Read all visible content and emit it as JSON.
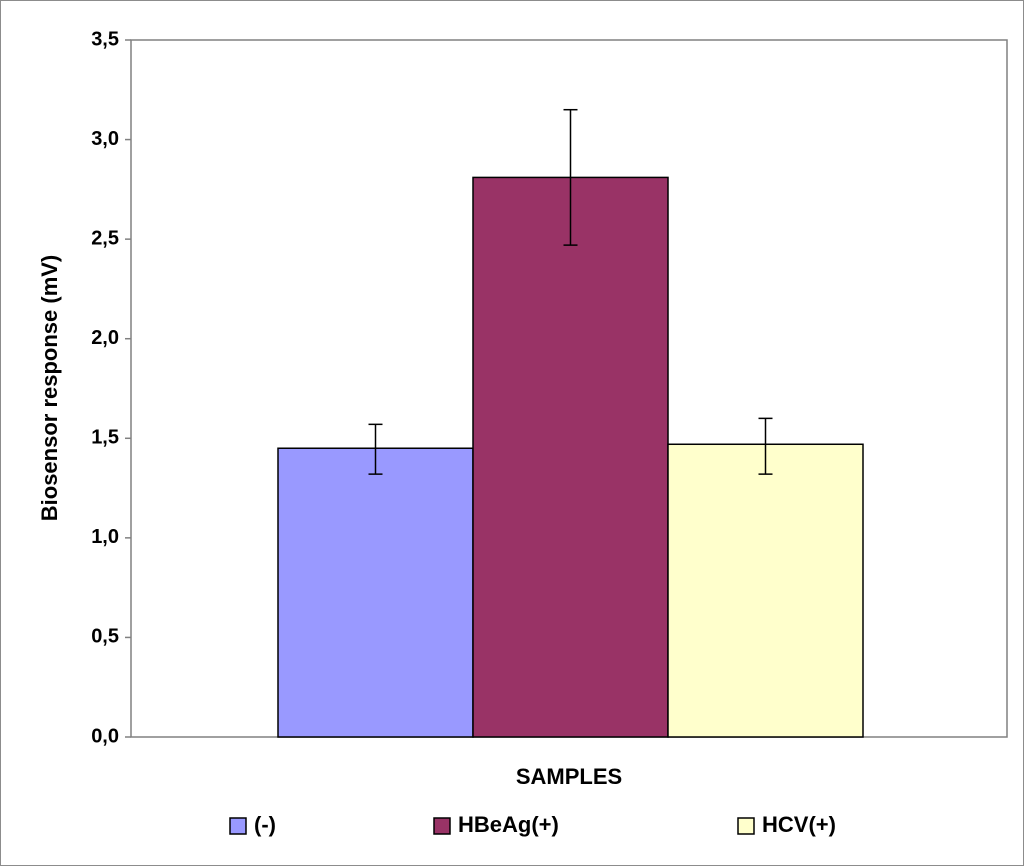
{
  "chart_data": {
    "type": "bar",
    "categories": [
      "(-)",
      "HBeAg(+)",
      "HCV(+)"
    ],
    "values": [
      1.45,
      2.81,
      1.47
    ],
    "error_bars": [
      {
        "low": 1.32,
        "high": 1.57
      },
      {
        "low": 2.47,
        "high": 3.15
      },
      {
        "low": 1.32,
        "high": 1.6
      }
    ],
    "colors": [
      "#9999ff",
      "#993366",
      "#ffffcc"
    ],
    "xlabel": "SAMPLES",
    "ylabel": "Biosensor response (mV)",
    "ylim": [
      0,
      3.5
    ],
    "yticks": [
      "0,0",
      "0,5",
      "1,0",
      "1,5",
      "2,0",
      "2,5",
      "3,0",
      "3,5"
    ],
    "grid": false,
    "legend_position": "bottom"
  }
}
